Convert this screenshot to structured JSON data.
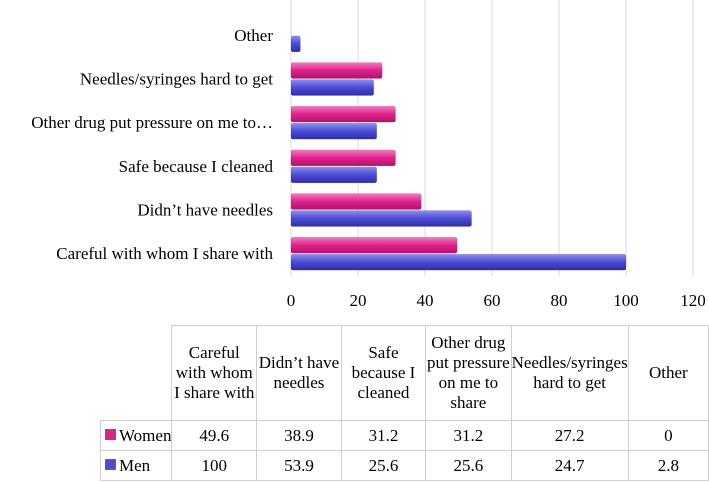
{
  "chart_data": {
    "type": "bar",
    "orientation": "horizontal",
    "categories": [
      "Careful with whom I share with",
      "Didn’t have needles",
      "Safe because I cleaned",
      "Other drug put pressure on me to…",
      "Needles/syringes hard to get",
      "Other"
    ],
    "table_headers": [
      "Careful with whom I share with",
      "Didn’t have needles",
      "Safe because I cleaned",
      "Other drug put pressure on me to share",
      "Needles/syringes hard to get",
      "Other"
    ],
    "series": [
      {
        "name": "Women",
        "values": [
          49.6,
          38.9,
          31.2,
          31.2,
          27.2,
          0
        ],
        "color": "#e0218a"
      },
      {
        "name": "Men",
        "values": [
          100,
          53.9,
          25.6,
          25.6,
          24.7,
          2.8
        ],
        "color": "#4b4bd6"
      }
    ],
    "xlim": [
      0,
      120
    ],
    "xticks": [
      0,
      20,
      40,
      60,
      80,
      100,
      120
    ],
    "grid": true,
    "legend": "data table"
  }
}
